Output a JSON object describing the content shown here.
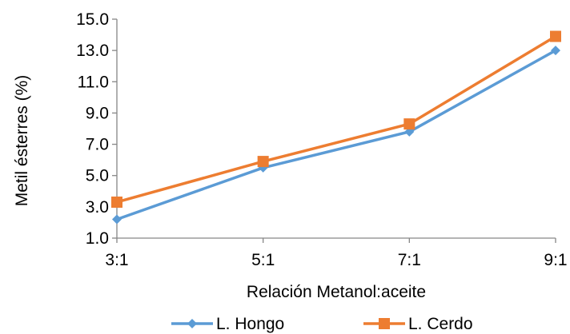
{
  "chart_data": {
    "type": "line",
    "categories": [
      "3:1",
      "5:1",
      "7:1",
      "9:1"
    ],
    "series": [
      {
        "name": "L. Hongo",
        "values": [
          2.2,
          5.5,
          7.8,
          13.0
        ],
        "color": "#5B9BD5",
        "marker": "diamond"
      },
      {
        "name": "L. Cerdo",
        "values": [
          3.3,
          5.9,
          8.3,
          13.9
        ],
        "color": "#ED7D31",
        "marker": "square"
      }
    ],
    "title": "",
    "xlabel": "Relación Metanol:aceite",
    "ylabel": "Metil ésterres (%)",
    "ylim": [
      1.0,
      15.0
    ],
    "yticks": [
      "1.0",
      "3.0",
      "5.0",
      "7.0",
      "9.0",
      "11.0",
      "13.0",
      "15.0"
    ],
    "grid": false,
    "legend_position": "bottom"
  }
}
